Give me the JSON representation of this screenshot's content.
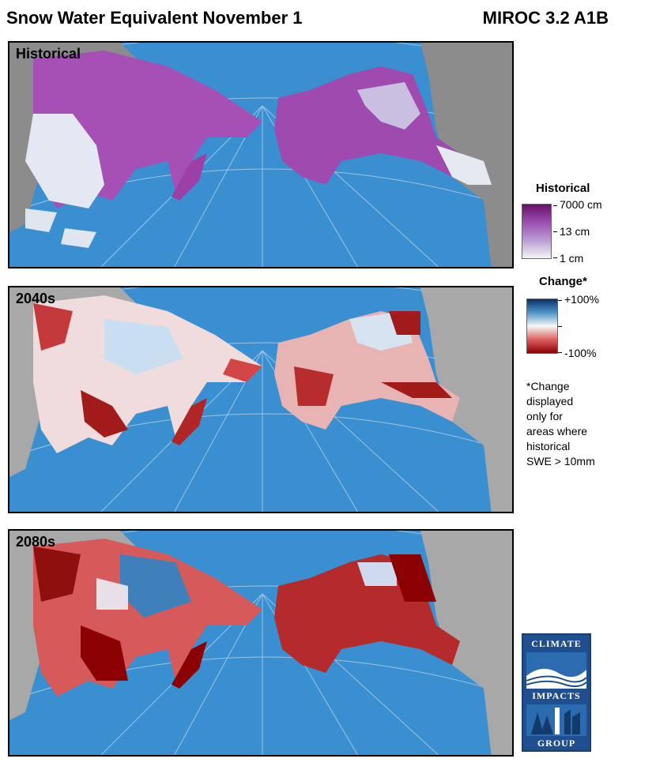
{
  "header": {
    "title": "Snow Water Equivalent November 1",
    "model": "MIROC 3.2 A1B"
  },
  "panels": [
    {
      "label": "Historical"
    },
    {
      "label": "2040s"
    },
    {
      "label": "2080s"
    }
  ],
  "legend_historical": {
    "title": "Historical",
    "max_label": "7000 cm",
    "mid_label": "13 cm",
    "min_label": "1 cm",
    "colors": [
      "#6a0f6a",
      "#9a4fb0",
      "#b99ed2",
      "#f5f5f5"
    ]
  },
  "legend_change": {
    "title": "Change*",
    "max_label": "+100%",
    "min_label": "-100%",
    "colors": [
      "#08306b",
      "#4f93c8",
      "#f7f7f7",
      "#e06060",
      "#8b0000"
    ]
  },
  "note": {
    "lines": [
      "*Change",
      "displayed",
      "only for",
      "areas where",
      "historical",
      "SWE > 10mm"
    ]
  },
  "logo": {
    "top_word": "CLIMATE",
    "middle_word": "IMPACTS",
    "bottom_word": "GROUP"
  },
  "colors": {
    "ocean": "#3a8fd0",
    "land": "#a8a8a8",
    "no_data_land": "#8c8c8c"
  }
}
